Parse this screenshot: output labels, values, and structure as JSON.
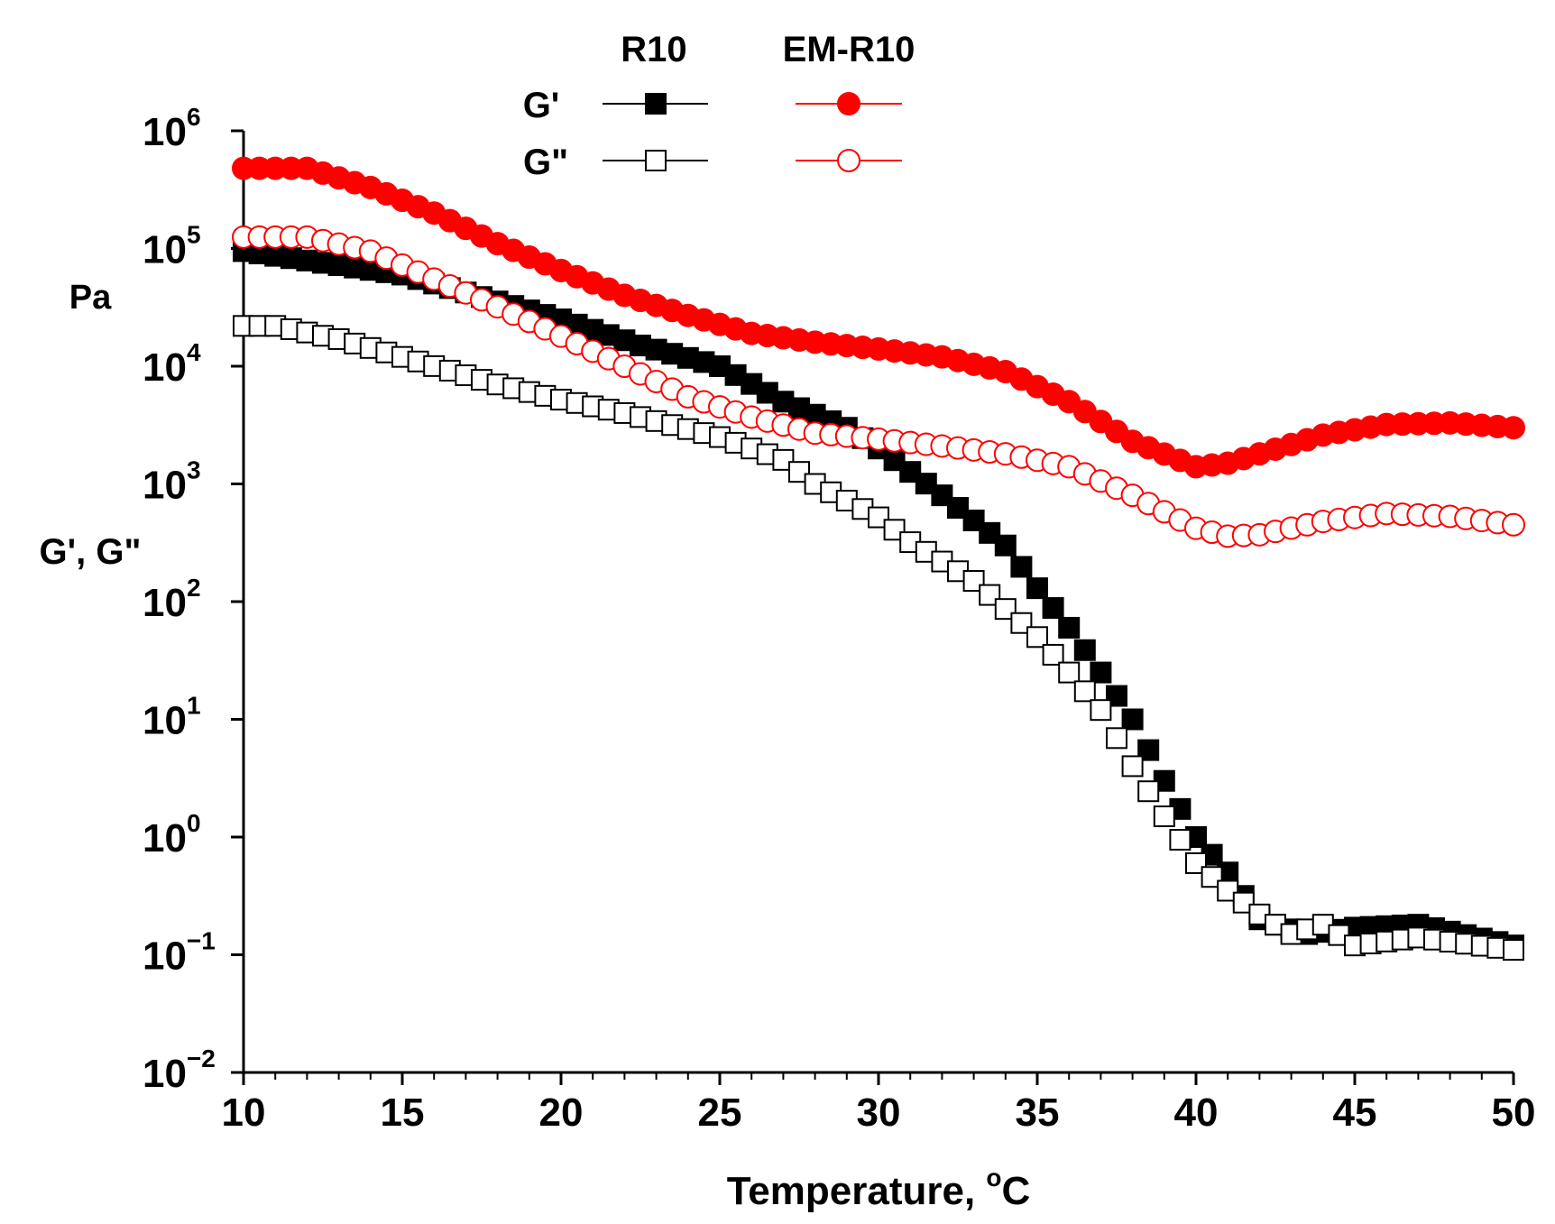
{
  "chart_data": {
    "type": "scatter",
    "title": "",
    "xlabel": "Temperature, °C",
    "xlabel_parts": {
      "text": "Temperature, ",
      "degree": "o",
      "unit": "C"
    },
    "ylabel_top": "Pa",
    "ylabel": "G', G\"",
    "xlim": [
      10,
      50
    ],
    "ylim": [
      0.01,
      1000000
    ],
    "yscale": "log",
    "x_ticks": [
      10,
      15,
      20,
      25,
      30,
      35,
      40,
      45,
      50
    ],
    "x_tick_labels": [
      "10",
      "15",
      "20",
      "25",
      "30",
      "35",
      "40",
      "45",
      "50"
    ],
    "y_ticks": [
      {
        "base": "10",
        "exp": "6",
        "value": 1000000
      },
      {
        "base": "10",
        "exp": "5",
        "value": 100000
      },
      {
        "base": "10",
        "exp": "4",
        "value": 10000
      },
      {
        "base": "10",
        "exp": "3",
        "value": 1000
      },
      {
        "base": "10",
        "exp": "2",
        "value": 100
      },
      {
        "base": "10",
        "exp": "1",
        "value": 10
      },
      {
        "base": "10",
        "exp": "0",
        "value": 1
      },
      {
        "base": "10",
        "exp": "−1",
        "value": 0.1
      },
      {
        "base": "10",
        "exp": "−2",
        "value": 0.01
      }
    ],
    "legend": {
      "position": "top-center",
      "column_headers": [
        "R10",
        "EM-R10"
      ],
      "row_labels": [
        "G'",
        "G\""
      ]
    },
    "series": [
      {
        "name": "R10 G'",
        "group": "R10",
        "modulus": "G'",
        "marker": "square",
        "filled": true,
        "color": "#000000",
        "x": [
          10,
          15,
          20,
          22.5,
          25,
          27,
          29,
          30,
          32,
          34,
          35,
          36,
          37,
          38,
          39,
          40,
          41,
          42,
          42.5,
          43.5,
          45,
          47,
          50
        ],
        "y": [
          95000,
          60000,
          25000,
          15000,
          10000,
          5000,
          3000,
          2000,
          800,
          300,
          130,
          60,
          25,
          10,
          3,
          1,
          0.5,
          0.2,
          0.18,
          0.15,
          0.17,
          0.18,
          0.12
        ]
      },
      {
        "name": "R10 G\"",
        "group": "R10",
        "modulus": "G\"",
        "marker": "square",
        "filled": false,
        "color": "#000000",
        "x": [
          10,
          11,
          13,
          15,
          18,
          20,
          22,
          25,
          27,
          28,
          30,
          31,
          33,
          35,
          36,
          37,
          38,
          39,
          40,
          41,
          42,
          42.5,
          43,
          44,
          45,
          47,
          50
        ],
        "y": [
          22000,
          22000,
          17000,
          12000,
          7000,
          5200,
          4000,
          2500,
          1600,
          1000,
          520,
          320,
          150,
          50,
          25,
          12,
          4,
          1.5,
          0.6,
          0.35,
          0.22,
          0.18,
          0.15,
          0.18,
          0.12,
          0.14,
          0.11
        ]
      },
      {
        "name": "EM-R10 G'",
        "group": "EM-R10",
        "modulus": "G'",
        "marker": "circle",
        "filled": true,
        "color": "#ff0000",
        "x": [
          10,
          12,
          14,
          16,
          18,
          20,
          22,
          24,
          26,
          28,
          30,
          32,
          34,
          36,
          38,
          40,
          41,
          42,
          44,
          46,
          48,
          50
        ],
        "y": [
          480000,
          480000,
          330000,
          200000,
          110000,
          65000,
          40000,
          27000,
          19000,
          16000,
          14000,
          12000,
          9000,
          5000,
          2300,
          1400,
          1500,
          1800,
          2600,
          3200,
          3300,
          3000
        ]
      },
      {
        "name": "EM-R10 G\"",
        "group": "EM-R10",
        "modulus": "G\"",
        "marker": "circle",
        "filled": false,
        "color": "#ff0000",
        "x": [
          10,
          12,
          14,
          16,
          18,
          20,
          22,
          24,
          26,
          28,
          30,
          32,
          34,
          36,
          38,
          40,
          41,
          42,
          44,
          46,
          48,
          50
        ],
        "y": [
          125000,
          125000,
          95000,
          55000,
          32000,
          18000,
          10000,
          5500,
          3700,
          2700,
          2400,
          2100,
          1800,
          1400,
          800,
          420,
          360,
          370,
          480,
          560,
          530,
          450
        ]
      }
    ]
  }
}
